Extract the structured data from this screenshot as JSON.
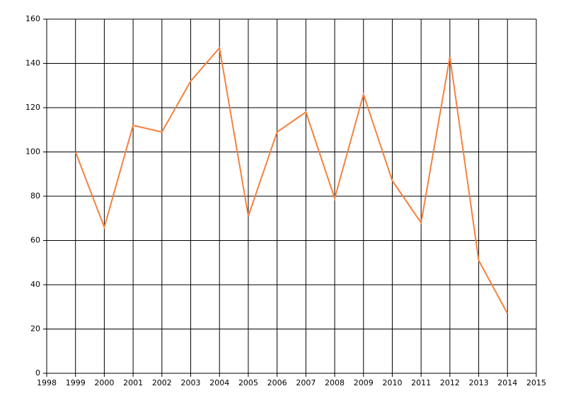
{
  "chart_data": {
    "type": "line",
    "x": [
      1999,
      2000,
      2001,
      2002,
      2003,
      2004,
      2005,
      2006,
      2007,
      2008,
      2009,
      2010,
      2011,
      2012,
      2013,
      2014
    ],
    "values": [
      100,
      66,
      112,
      109,
      132,
      147,
      71,
      109,
      118,
      79,
      126,
      87,
      68,
      143,
      51,
      27
    ],
    "color": "#f5813f",
    "xlim": [
      1998,
      2015
    ],
    "xticks": [
      1998,
      1999,
      2000,
      2001,
      2002,
      2003,
      2004,
      2005,
      2006,
      2007,
      2008,
      2009,
      2010,
      2011,
      2012,
      2013,
      2014,
      2015
    ],
    "ylim": [
      0,
      160
    ],
    "yticks": [
      0,
      20,
      40,
      60,
      80,
      100,
      120,
      140,
      160
    ],
    "grid": true
  }
}
